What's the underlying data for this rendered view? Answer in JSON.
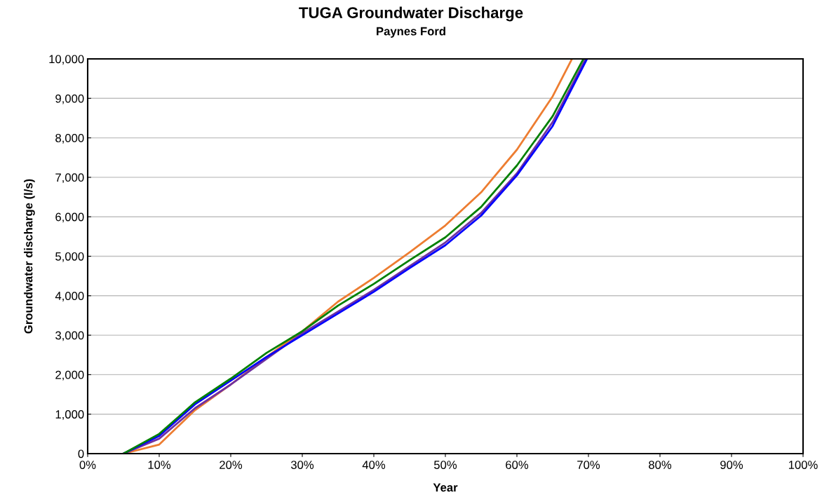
{
  "chart_data": {
    "type": "line",
    "title": "TUGA Groundwater Discharge",
    "subtitle": "Paynes Ford",
    "xlabel": "Year",
    "ylabel": "Groundwater discharge (l/s)",
    "xlim": [
      0,
      100
    ],
    "xticks": [
      {
        "value": 0,
        "label": "0%"
      },
      {
        "value": 10,
        "label": "10%"
      },
      {
        "value": 20,
        "label": "20%"
      },
      {
        "value": 30,
        "label": "30%"
      },
      {
        "value": 40,
        "label": "40%"
      },
      {
        "value": 50,
        "label": "50%"
      },
      {
        "value": 60,
        "label": "60%"
      },
      {
        "value": 70,
        "label": "70%"
      },
      {
        "value": 80,
        "label": "80%"
      },
      {
        "value": 90,
        "label": "90%"
      },
      {
        "value": 100,
        "label": "100%"
      }
    ],
    "ylim": [
      0,
      10000
    ],
    "yticks": [
      0,
      {
        "value": 1000,
        "label": "1,000"
      },
      {
        "value": 2000,
        "label": "2,000"
      },
      {
        "value": 3000,
        "label": "3,000"
      },
      {
        "value": 4000,
        "label": "4,000"
      },
      {
        "value": 5000,
        "label": "5,000"
      },
      {
        "value": 6000,
        "label": "6,000"
      },
      {
        "value": 7000,
        "label": "7,000"
      },
      {
        "value": 8000,
        "label": "8,000"
      },
      {
        "value": 9000,
        "label": "9,000"
      },
      {
        "value": 10000,
        "label": "10,000"
      }
    ],
    "grid": "y",
    "legend": false,
    "series": [
      {
        "color": "#ed7d31",
        "x": [
          5,
          10,
          15,
          20,
          25,
          30,
          35,
          40,
          45,
          50,
          55,
          60,
          65,
          67.7
        ],
        "values": [
          0,
          230,
          1100,
          1750,
          2450,
          3100,
          3850,
          4450,
          5100,
          5780,
          6620,
          7700,
          9050,
          10000
        ]
      },
      {
        "color": "#7030a0",
        "x": [
          5,
          10,
          15,
          20,
          25,
          30,
          35,
          40,
          45,
          50,
          55,
          60,
          65,
          69.6
        ],
        "values": [
          0,
          380,
          1150,
          1750,
          2400,
          3050,
          3600,
          4150,
          4750,
          5350,
          6100,
          7100,
          8400,
          10000
        ]
      },
      {
        "color": "#0000ff",
        "x": [
          5,
          10,
          15,
          20,
          25,
          30,
          35,
          40,
          45,
          50,
          55,
          60,
          65,
          69.8
        ],
        "values": [
          0,
          450,
          1250,
          1850,
          2450,
          3000,
          3550,
          4100,
          4700,
          5280,
          6030,
          7050,
          8300,
          10000
        ]
      },
      {
        "color": "#008000",
        "x": [
          5,
          10,
          15,
          20,
          25,
          30,
          35,
          40,
          45,
          50,
          55,
          60,
          65,
          69.3
        ],
        "values": [
          0,
          500,
          1300,
          1900,
          2550,
          3100,
          3750,
          4300,
          4900,
          5480,
          6250,
          7300,
          8550,
          10000
        ]
      }
    ]
  }
}
